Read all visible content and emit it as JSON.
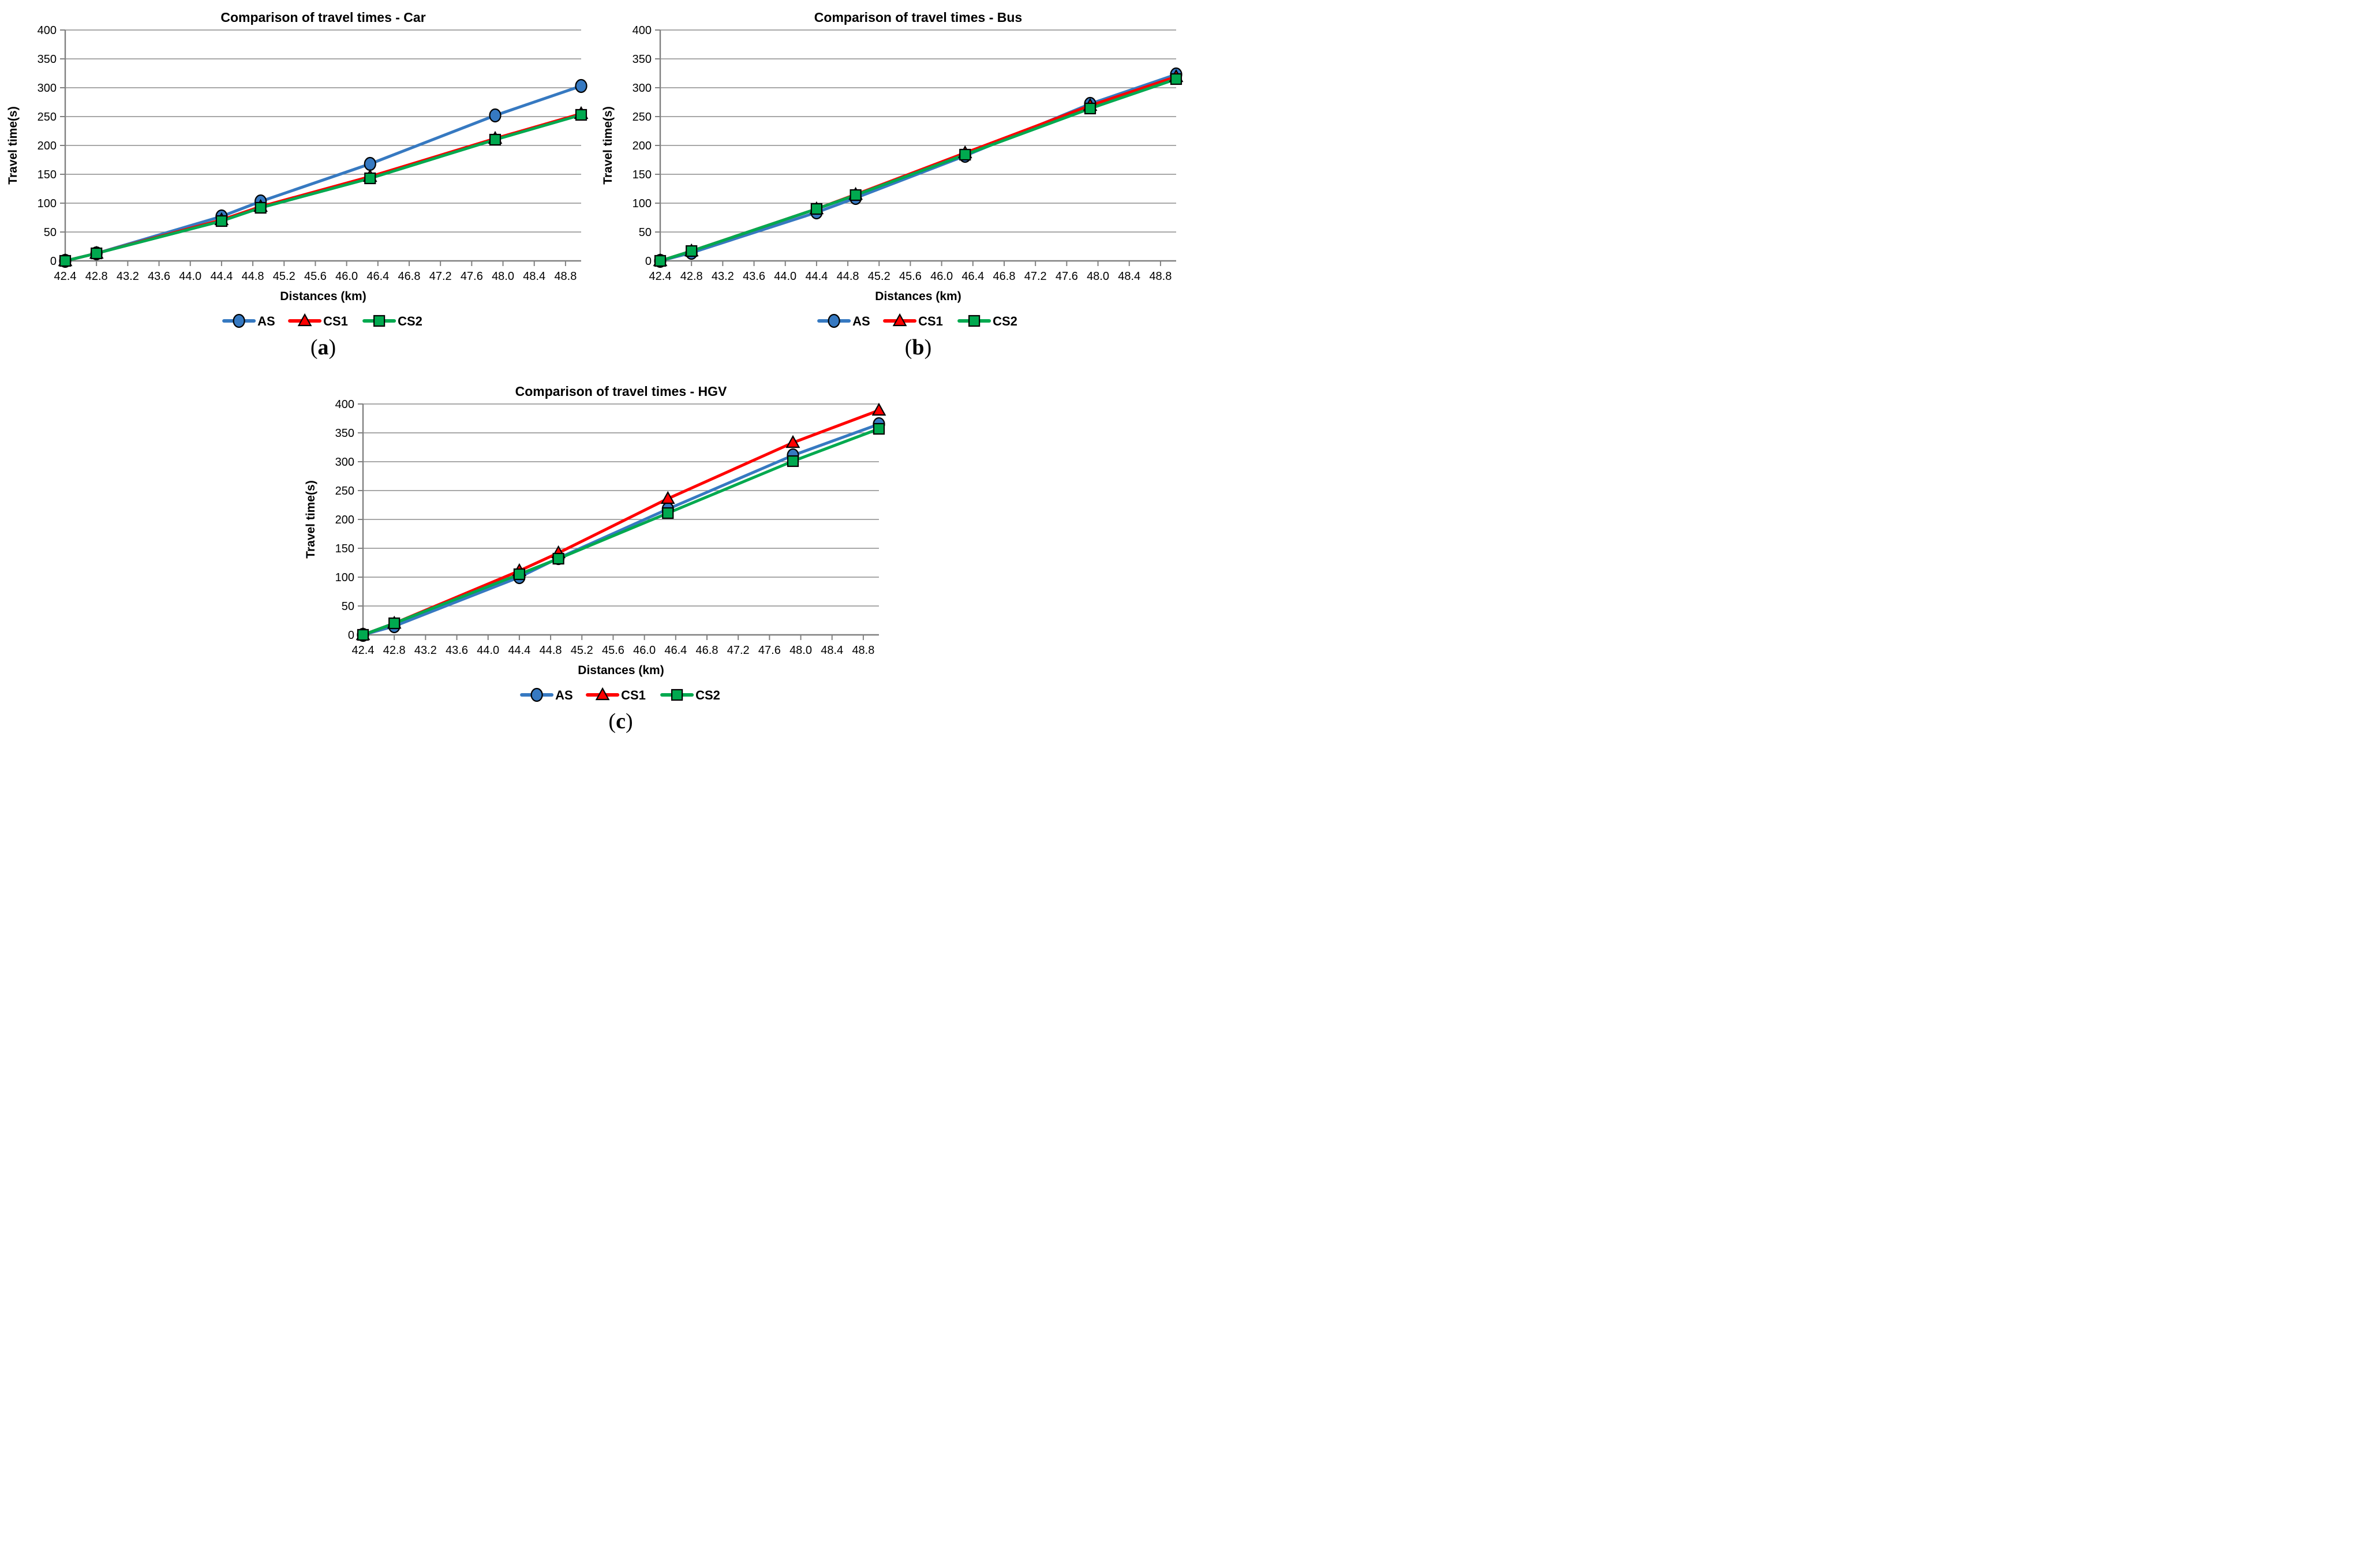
{
  "figure": {
    "captions": [
      {
        "open": "(",
        "letter": "a",
        "close": ")"
      },
      {
        "open": "(",
        "letter": "b",
        "close": ")"
      },
      {
        "open": "(",
        "letter": "c",
        "close": ")"
      }
    ]
  },
  "style_colors": {
    "series_as": "#3679C1",
    "series_cs1": "#FF0000",
    "series_cs2": "#00A94F",
    "marker_outline": "#000000",
    "gridline": "#8C8C8C",
    "axis": "#808080",
    "text": "#000000",
    "background": "#FFFFFF"
  },
  "chart_data": [
    {
      "id": "car",
      "type": "line",
      "title": "Comparison of travel times - Car",
      "xlabel": "Distances (km)",
      "ylabel": "Travel time(s)",
      "grid": true,
      "legend_position": "bottom",
      "xlim": [
        42.4,
        49.0
      ],
      "ylim": [
        0,
        400
      ],
      "x_ticks": [
        "42.4",
        "42.8",
        "43.2",
        "43.6",
        "44.0",
        "44.4",
        "44.8",
        "45.2",
        "45.6",
        "46.0",
        "46.4",
        "46.8",
        "47.2",
        "47.6",
        "48.0",
        "48.4",
        "48.8"
      ],
      "y_ticks": [
        0,
        50,
        100,
        150,
        200,
        250,
        300,
        350,
        400
      ],
      "x": [
        42.4,
        42.8,
        44.4,
        44.9,
        46.3,
        47.9,
        49.0
      ],
      "series": [
        {
          "name": "AS",
          "marker": "circle",
          "color": "#3679C1",
          "values": [
            0,
            13,
            77,
            103,
            168,
            252,
            303
          ]
        },
        {
          "name": "CS1",
          "marker": "triangle",
          "color": "#FF0000",
          "values": [
            0,
            13,
            71,
            94,
            146,
            212,
            255
          ]
        },
        {
          "name": "CS2",
          "marker": "square",
          "color": "#00A94F",
          "values": [
            0,
            13,
            69,
            92,
            143,
            210,
            253
          ]
        }
      ]
    },
    {
      "id": "bus",
      "type": "line",
      "title": "Comparison of travel times - Bus",
      "xlabel": "Distances (km)",
      "ylabel": "Travel time(s)",
      "grid": true,
      "legend_position": "bottom",
      "xlim": [
        42.4,
        49.0
      ],
      "ylim": [
        0,
        400
      ],
      "x_ticks": [
        "42.4",
        "42.8",
        "43.2",
        "43.6",
        "44.0",
        "44.4",
        "44.8",
        "45.2",
        "45.6",
        "46.0",
        "46.4",
        "46.8",
        "47.2",
        "47.6",
        "48.0",
        "48.4",
        "48.8"
      ],
      "y_ticks": [
        0,
        50,
        100,
        150,
        200,
        250,
        300,
        350,
        400
      ],
      "x": [
        42.4,
        42.8,
        44.4,
        44.9,
        46.3,
        47.9,
        49.0
      ],
      "series": [
        {
          "name": "AS",
          "marker": "circle",
          "color": "#3679C1",
          "values": [
            0,
            14,
            84,
            109,
            182,
            272,
            323
          ]
        },
        {
          "name": "CS1",
          "marker": "triangle",
          "color": "#FF0000",
          "values": [
            0,
            17,
            90,
            115,
            187,
            269,
            319
          ]
        },
        {
          "name": "CS2",
          "marker": "square",
          "color": "#00A94F",
          "values": [
            0,
            17,
            90,
            114,
            184,
            264,
            315
          ]
        }
      ]
    },
    {
      "id": "hgv",
      "type": "line",
      "title": "Comparison of travel times - HGV",
      "xlabel": "Distances (km)",
      "ylabel": "Travel time(s)",
      "grid": true,
      "legend_position": "bottom",
      "xlim": [
        42.4,
        49.0
      ],
      "ylim": [
        0,
        400
      ],
      "x_ticks": [
        "42.4",
        "42.8",
        "43.2",
        "43.6",
        "44.0",
        "44.4",
        "44.8",
        "45.2",
        "45.6",
        "46.0",
        "46.4",
        "46.8",
        "47.2",
        "47.6",
        "48.0",
        "48.4",
        "48.8"
      ],
      "y_ticks": [
        0,
        50,
        100,
        150,
        200,
        250,
        300,
        350,
        400
      ],
      "x": [
        42.4,
        42.8,
        44.4,
        44.9,
        46.3,
        47.9,
        49.0
      ],
      "series": [
        {
          "name": "AS",
          "marker": "circle",
          "color": "#3679C1",
          "values": [
            0,
            15,
            100,
            133,
            218,
            311,
            365
          ]
        },
        {
          "name": "CS1",
          "marker": "triangle",
          "color": "#FF0000",
          "values": [
            0,
            20,
            111,
            142,
            236,
            333,
            389
          ]
        },
        {
          "name": "CS2",
          "marker": "square",
          "color": "#00A94F",
          "values": [
            0,
            20,
            105,
            132,
            211,
            301,
            357
          ]
        }
      ]
    }
  ]
}
